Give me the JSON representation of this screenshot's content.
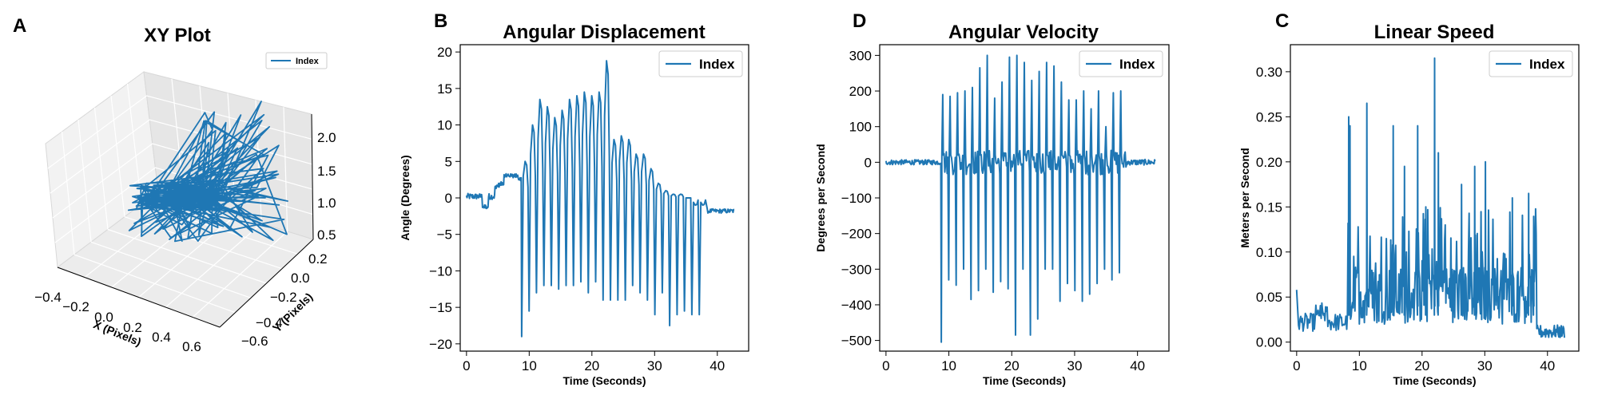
{
  "colors": {
    "series": "#1f77b4",
    "axis": "#000000",
    "grid": "#b0b0b0"
  },
  "panels": [
    {
      "letter": "A",
      "chart_data": {
        "type": "line",
        "projection": "3d",
        "title": "XY Plot",
        "xlabel": "X (Pixels)",
        "ylabel": "Y (Pixels)",
        "zlabel": "",
        "xlim": [
          -0.45,
          0.7
        ],
        "ylim": [
          -0.6,
          0.25
        ],
        "zlim": [
          0.5,
          2.2
        ],
        "xticks": [
          "−0.4",
          "−0.2",
          "0.0",
          "0.2",
          "0.4",
          "0.6"
        ],
        "yticks": [
          "−0.6",
          "−0.4",
          "−0.2",
          "0.0",
          "0.2"
        ],
        "zticks": [
          "0.5",
          "1.0",
          "1.5",
          "2.0"
        ],
        "legend": {
          "entries": [
            "Index"
          ],
          "position": "top-right"
        },
        "series": [
          {
            "name": "Index"
          }
        ]
      }
    },
    {
      "letter": "B",
      "chart_data": {
        "type": "line",
        "title": "Angular Displacement",
        "xlabel": "Time (Seconds)",
        "ylabel": "Angle (Degrees)",
        "xlim": [
          -1,
          45
        ],
        "ylim": [
          -21,
          21
        ],
        "xticks": [
          0,
          10,
          20,
          30,
          40
        ],
        "yticks": [
          -20,
          -15,
          -10,
          -5,
          0,
          5,
          10,
          15,
          20
        ],
        "ytick_labels": [
          "−20",
          "−15",
          "−10",
          "−5",
          "0",
          "5",
          "10",
          "15",
          "20"
        ],
        "legend": {
          "entries": [
            "Index"
          ],
          "position": "top-right"
        },
        "series": [
          {
            "name": "Index"
          }
        ]
      }
    },
    {
      "letter": "D",
      "chart_data": {
        "type": "line",
        "title": "Angular Velocity",
        "xlabel": "Time (Seconds)",
        "ylabel": "Degrees per Second",
        "xlim": [
          -1,
          45
        ],
        "ylim": [
          -530,
          330
        ],
        "xticks": [
          0,
          10,
          20,
          30,
          40
        ],
        "yticks": [
          -500,
          -400,
          -300,
          -200,
          -100,
          0,
          100,
          200,
          300
        ],
        "ytick_labels": [
          "−500",
          "−400",
          "−300",
          "−200",
          "−100",
          "0",
          "100",
          "200",
          "300"
        ],
        "legend": {
          "entries": [
            "Index"
          ],
          "position": "top-right"
        },
        "series": [
          {
            "name": "Index"
          }
        ]
      }
    },
    {
      "letter": "C",
      "chart_data": {
        "type": "line",
        "title": "Linear Speed",
        "xlabel": "Time (Seconds)",
        "ylabel": "Meters per Second",
        "xlim": [
          -1,
          45
        ],
        "ylim": [
          -0.01,
          0.33
        ],
        "xticks": [
          0,
          10,
          20,
          30,
          40
        ],
        "yticks": [
          0.0,
          0.05,
          0.1,
          0.15,
          0.2,
          0.25,
          0.3
        ],
        "ytick_labels": [
          "0.00",
          "0.05",
          "0.10",
          "0.15",
          "0.20",
          "0.25",
          "0.30"
        ],
        "legend": {
          "entries": [
            "Index"
          ],
          "position": "top-right"
        },
        "series": [
          {
            "name": "Index"
          }
        ]
      }
    }
  ]
}
